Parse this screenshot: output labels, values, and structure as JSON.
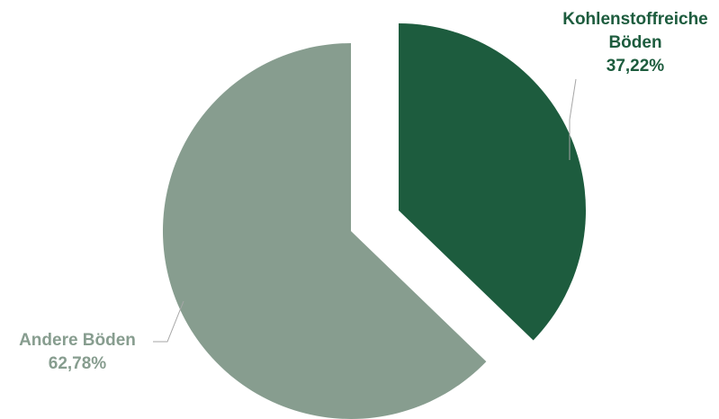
{
  "chart_data": {
    "type": "pie",
    "exploded": true,
    "slices": [
      {
        "label": "Kohlenstoffreiche Böden",
        "label_lines": [
          "Kohlenstoffreiche",
          "Böden"
        ],
        "value": 37.22,
        "value_text": "37,22%",
        "color": "#1d5c3e",
        "label_color": "#1d5c3e"
      },
      {
        "label": "Andere Böden",
        "label_lines": [
          "Andere Böden"
        ],
        "value": 62.78,
        "value_text": "62,78%",
        "color": "#879d8f",
        "label_color": "#879d8f"
      }
    ],
    "leader_line_color": "#a6a6a6",
    "legend": "none"
  }
}
